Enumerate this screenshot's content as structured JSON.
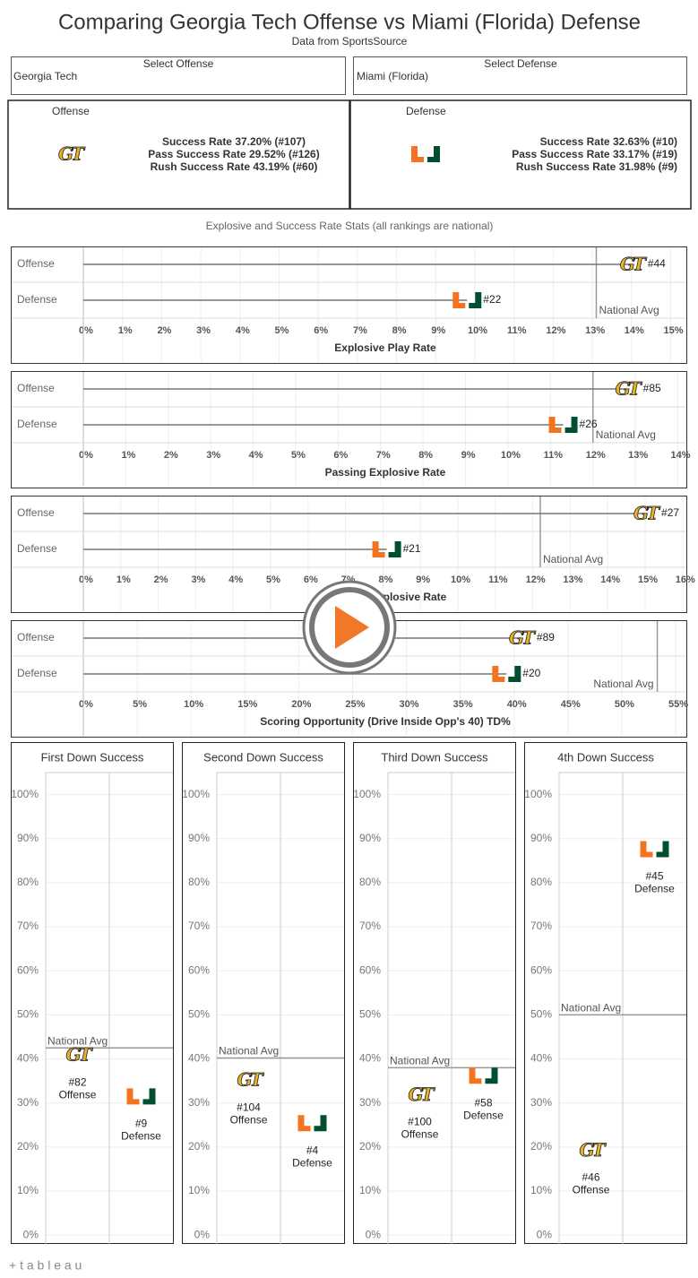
{
  "header": {
    "title": "Comparing Georgia Tech Offense vs Miami (Florida) Defense",
    "subtitle": "Data from SportsSource"
  },
  "selectors": [
    {
      "label": "Select Offense",
      "value": "Georgia Tech"
    },
    {
      "label": "Select Defense",
      "value": "Miami (Florida)"
    }
  ],
  "panels": [
    {
      "label": "Offense",
      "lines": [
        "Success Rate 37.20% (#107)",
        "Pass Success Rate 29.52% (#126)",
        "Rush Success Rate 43.19% (#60)"
      ]
    },
    {
      "label": "Defense",
      "lines": [
        "Success Rate 32.63% (#10)",
        "Pass Success Rate 33.17% (#19)",
        "Rush Success Rate 31.98% (#9)"
      ]
    }
  ],
  "section_title": "Explosive and Success Rate Stats (all rankings are national)",
  "footer": "+ t a b l e a u",
  "chart_data": [
    {
      "type": "dotplot",
      "xlabel": "Explosive Play Rate",
      "categories": [
        "Offense",
        "Defense"
      ],
      "values": [
        14.0,
        9.8
      ],
      "ranks": [
        "#44",
        "#22"
      ],
      "reference": {
        "label": "National Avg",
        "value": 13.1
      },
      "xlim": [
        0,
        15.4
      ],
      "xticks": [
        {
          "value": 0,
          "label": "0%"
        },
        {
          "value": 1,
          "label": "1%"
        },
        {
          "value": 2,
          "label": "2%"
        },
        {
          "value": 3,
          "label": "3%"
        },
        {
          "value": 4,
          "label": "4%"
        },
        {
          "value": 5,
          "label": "5%"
        },
        {
          "value": 6,
          "label": "6%"
        },
        {
          "value": 7,
          "label": "7%"
        },
        {
          "value": 8,
          "label": "8%"
        },
        {
          "value": 9,
          "label": "9%"
        },
        {
          "value": 10,
          "label": "10%"
        },
        {
          "value": 11,
          "label": "11%"
        },
        {
          "value": 12,
          "label": "12%"
        },
        {
          "value": 13,
          "label": "13%"
        },
        {
          "value": 14,
          "label": "14%"
        },
        {
          "value": 15,
          "label": "15%"
        }
      ]
    },
    {
      "type": "dotplot",
      "xlabel": "Passing Explosive Rate",
      "categories": [
        "Offense",
        "Defense"
      ],
      "values": [
        12.8,
        11.3
      ],
      "ranks": [
        "#85",
        "#26"
      ],
      "reference": {
        "label": "National Avg",
        "value": 12.0
      },
      "xlim": [
        0,
        14.2
      ],
      "xticks": [
        {
          "value": 0,
          "label": "0%"
        },
        {
          "value": 1,
          "label": "1%"
        },
        {
          "value": 2,
          "label": "2%"
        },
        {
          "value": 3,
          "label": "3%"
        },
        {
          "value": 4,
          "label": "4%"
        },
        {
          "value": 5,
          "label": "5%"
        },
        {
          "value": 6,
          "label": "6%"
        },
        {
          "value": 7,
          "label": "7%"
        },
        {
          "value": 8,
          "label": "8%"
        },
        {
          "value": 9,
          "label": "9%"
        },
        {
          "value": 10,
          "label": "10%"
        },
        {
          "value": 11,
          "label": "11%"
        },
        {
          "value": 12,
          "label": "12%"
        },
        {
          "value": 13,
          "label": "13%"
        },
        {
          "value": 14,
          "label": "14%"
        }
      ]
    },
    {
      "type": "dotplot",
      "xlabel": "Rushing Explosive Rate",
      "categories": [
        "Offense",
        "Defense"
      ],
      "values": [
        15.0,
        8.1
      ],
      "ranks": [
        "#27",
        "#21"
      ],
      "reference": {
        "label": "National Avg",
        "value": 12.2
      },
      "xlim": [
        0,
        16.1
      ],
      "xticks": [
        {
          "value": 0,
          "label": "0%"
        },
        {
          "value": 1,
          "label": "1%"
        },
        {
          "value": 2,
          "label": "2%"
        },
        {
          "value": 3,
          "label": "3%"
        },
        {
          "value": 4,
          "label": "4%"
        },
        {
          "value": 5,
          "label": "5%"
        },
        {
          "value": 6,
          "label": "6%"
        },
        {
          "value": 7,
          "label": "7%"
        },
        {
          "value": 8,
          "label": "8%"
        },
        {
          "value": 9,
          "label": "9%"
        },
        {
          "value": 10,
          "label": "10%"
        },
        {
          "value": 11,
          "label": "11%"
        },
        {
          "value": 12,
          "label": "12%"
        },
        {
          "value": 13,
          "label": "13%"
        },
        {
          "value": 14,
          "label": "14%"
        },
        {
          "value": 15,
          "label": "15%"
        },
        {
          "value": 16,
          "label": "16%"
        }
      ]
    },
    {
      "type": "dotplot",
      "xlabel": "Scoring Opportunity (Drive Inside Opp's 40) TD%",
      "categories": [
        "Offense",
        "Defense"
      ],
      "values": [
        40.6,
        39.3
      ],
      "ranks": [
        "#89",
        "#20"
      ],
      "reference": {
        "label": "National Avg",
        "value": 53.3
      },
      "xlim": [
        0,
        56
      ],
      "xticks": [
        {
          "value": 0,
          "label": "0%"
        },
        {
          "value": 5,
          "label": "5%"
        },
        {
          "value": 10,
          "label": "10%"
        },
        {
          "value": 15,
          "label": "15%"
        },
        {
          "value": 20,
          "label": "20%"
        },
        {
          "value": 25,
          "label": "25%"
        },
        {
          "value": 30,
          "label": "30%"
        },
        {
          "value": 35,
          "label": "35%"
        },
        {
          "value": 40,
          "label": "40%"
        },
        {
          "value": 45,
          "label": "45%"
        },
        {
          "value": 50,
          "label": "50%"
        },
        {
          "value": 55,
          "label": "55%"
        }
      ]
    },
    {
      "type": "dotcolumn",
      "title": "First Down Success",
      "categories": [
        "Offense",
        "Defense"
      ],
      "values": [
        40.9,
        31.5
      ],
      "ranks": [
        "#82",
        "#9"
      ],
      "reference": {
        "label": "National Avg",
        "value": 42.5
      },
      "ylim": [
        -2,
        105
      ],
      "yticks": [
        {
          "value": 0,
          "label": "0%"
        },
        {
          "value": 10,
          "label": "10%"
        },
        {
          "value": 20,
          "label": "20%"
        },
        {
          "value": 30,
          "label": "30%"
        },
        {
          "value": 40,
          "label": "40%"
        },
        {
          "value": 50,
          "label": "50%"
        },
        {
          "value": 60,
          "label": "60%"
        },
        {
          "value": 70,
          "label": "70%"
        },
        {
          "value": 80,
          "label": "80%"
        },
        {
          "value": 90,
          "label": "90%"
        },
        {
          "value": 100,
          "label": "100%"
        }
      ]
    },
    {
      "type": "dotcolumn",
      "title": "Second Down Success",
      "categories": [
        "Offense",
        "Defense"
      ],
      "values": [
        35.2,
        25.4
      ],
      "ranks": [
        "#104",
        "#4"
      ],
      "reference": {
        "label": "National Avg",
        "value": 40.2
      },
      "ylim": [
        -2,
        105
      ],
      "yticks": [
        {
          "value": 0,
          "label": "0%"
        },
        {
          "value": 10,
          "label": "10%"
        },
        {
          "value": 20,
          "label": "20%"
        },
        {
          "value": 30,
          "label": "30%"
        },
        {
          "value": 40,
          "label": "40%"
        },
        {
          "value": 50,
          "label": "50%"
        },
        {
          "value": 60,
          "label": "60%"
        },
        {
          "value": 70,
          "label": "70%"
        },
        {
          "value": 80,
          "label": "80%"
        },
        {
          "value": 90,
          "label": "90%"
        },
        {
          "value": 100,
          "label": "100%"
        }
      ]
    },
    {
      "type": "dotcolumn",
      "title": "Third Down Success",
      "categories": [
        "Offense",
        "Defense"
      ],
      "values": [
        31.9,
        36.2
      ],
      "ranks": [
        "#100",
        "#58"
      ],
      "reference": {
        "label": "National Avg",
        "value": 38.0
      },
      "ylim": [
        -2,
        105
      ],
      "yticks": [
        {
          "value": 0,
          "label": "0%"
        },
        {
          "value": 10,
          "label": "10%"
        },
        {
          "value": 20,
          "label": "20%"
        },
        {
          "value": 30,
          "label": "30%"
        },
        {
          "value": 40,
          "label": "40%"
        },
        {
          "value": 50,
          "label": "50%"
        },
        {
          "value": 60,
          "label": "60%"
        },
        {
          "value": 70,
          "label": "70%"
        },
        {
          "value": 80,
          "label": "80%"
        },
        {
          "value": 90,
          "label": "90%"
        },
        {
          "value": 100,
          "label": "100%"
        }
      ]
    },
    {
      "type": "dotcolumn",
      "title": "4th Down Success",
      "categories": [
        "Offense",
        "Defense"
      ],
      "values": [
        19.3,
        87.6
      ],
      "ranks": [
        "#46",
        "#45"
      ],
      "reference": {
        "label": "National Avg",
        "value": 50.0
      },
      "ylim": [
        -2,
        105
      ],
      "yticks": [
        {
          "value": 0,
          "label": "0%"
        },
        {
          "value": 10,
          "label": "10%"
        },
        {
          "value": 20,
          "label": "20%"
        },
        {
          "value": 30,
          "label": "30%"
        },
        {
          "value": 40,
          "label": "40%"
        },
        {
          "value": 50,
          "label": "50%"
        },
        {
          "value": 60,
          "label": "60%"
        },
        {
          "value": 70,
          "label": "70%"
        },
        {
          "value": 80,
          "label": "80%"
        },
        {
          "value": 90,
          "label": "90%"
        },
        {
          "value": 100,
          "label": "100%"
        }
      ]
    }
  ]
}
